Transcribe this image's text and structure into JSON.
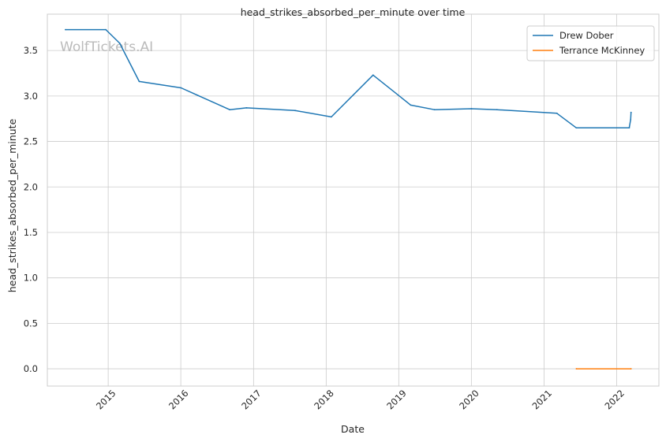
{
  "chart_data": {
    "type": "line",
    "title": "head_strikes_absorbed_per_minute over time",
    "xlabel": "Date",
    "ylabel": "head_strikes_absorbed_per_minute",
    "watermark": "WolfTickets.AI",
    "x_ticks": [
      "2015",
      "2016",
      "2017",
      "2018",
      "2019",
      "2020",
      "2021",
      "2022"
    ],
    "y_ticks": [
      "0.0",
      "0.5",
      "1.0",
      "1.5",
      "2.0",
      "2.5",
      "3.0",
      "3.5"
    ],
    "xlim": [
      "2014-03-01",
      "2022-08-01"
    ],
    "ylim": [
      -0.19,
      3.9
    ],
    "grid": true,
    "legend_position": "top-right",
    "series": [
      {
        "name": "Drew Dober",
        "color": "#1f77b4",
        "points": [
          {
            "x": "2014-05-31",
            "y": 3.73
          },
          {
            "x": "2014-12-20",
            "y": 3.73
          },
          {
            "x": "2015-02-28",
            "y": 3.58
          },
          {
            "x": "2015-06-06",
            "y": 3.16
          },
          {
            "x": "2016-01-02",
            "y": 3.09
          },
          {
            "x": "2016-09-03",
            "y": 2.85
          },
          {
            "x": "2016-11-26",
            "y": 2.87
          },
          {
            "x": "2017-07-29",
            "y": 2.84
          },
          {
            "x": "2018-01-27",
            "y": 2.77
          },
          {
            "x": "2018-08-25",
            "y": 3.23
          },
          {
            "x": "2019-03-02",
            "y": 2.9
          },
          {
            "x": "2019-06-29",
            "y": 2.85
          },
          {
            "x": "2020-01-01",
            "y": 2.86
          },
          {
            "x": "2020-05-09",
            "y": 2.85
          },
          {
            "x": "2021-03-06",
            "y": 2.81
          },
          {
            "x": "2021-06-12",
            "y": 2.65
          },
          {
            "x": "2022-03-05",
            "y": 2.65
          },
          {
            "x": "2022-03-12",
            "y": 2.74
          },
          {
            "x": "2022-03-14",
            "y": 2.82
          }
        ]
      },
      {
        "name": "Terrance McKinney",
        "color": "#ff7f0e",
        "points": [
          {
            "x": "2021-06-12",
            "y": 0.0
          },
          {
            "x": "2022-03-14",
            "y": 0.0
          }
        ]
      }
    ]
  }
}
